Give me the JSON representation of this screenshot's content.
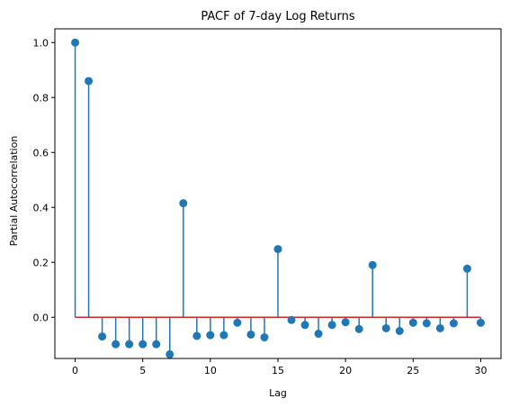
{
  "chart_data": {
    "type": "stem",
    "title": "PACF of 7-day Log Returns",
    "xlabel": "Lag",
    "ylabel": "Partial Autocorrelation",
    "xlim": [
      -1.5,
      31.5
    ],
    "ylim": [
      -0.15,
      1.05
    ],
    "x_ticks": [
      0,
      5,
      10,
      15,
      20,
      25,
      30
    ],
    "y_ticks": [
      0.0,
      0.2,
      0.4,
      0.6,
      0.8,
      1.0
    ],
    "x_tick_labels": [
      "0",
      "5",
      "10",
      "15",
      "20",
      "25",
      "30"
    ],
    "y_tick_labels": [
      "0.0",
      "0.2",
      "0.4",
      "0.6",
      "0.8",
      "1.0"
    ],
    "baseline": 0,
    "grid": false,
    "colors": {
      "marker": "#1f77b4",
      "stem": "#1f77b4",
      "baseline": "#d62728"
    },
    "x": [
      0,
      1,
      2,
      3,
      4,
      5,
      6,
      7,
      8,
      9,
      10,
      11,
      12,
      13,
      14,
      15,
      16,
      17,
      18,
      19,
      20,
      21,
      22,
      23,
      24,
      25,
      26,
      27,
      28,
      29,
      30
    ],
    "values": [
      1.0,
      0.86,
      -0.07,
      -0.098,
      -0.098,
      -0.098,
      -0.098,
      -0.135,
      0.415,
      -0.068,
      -0.065,
      -0.065,
      -0.02,
      -0.063,
      -0.073,
      0.248,
      -0.01,
      -0.028,
      -0.06,
      -0.028,
      -0.018,
      -0.043,
      0.19,
      -0.04,
      -0.05,
      -0.02,
      -0.022,
      -0.04,
      -0.022,
      0.177,
      -0.02
    ]
  }
}
